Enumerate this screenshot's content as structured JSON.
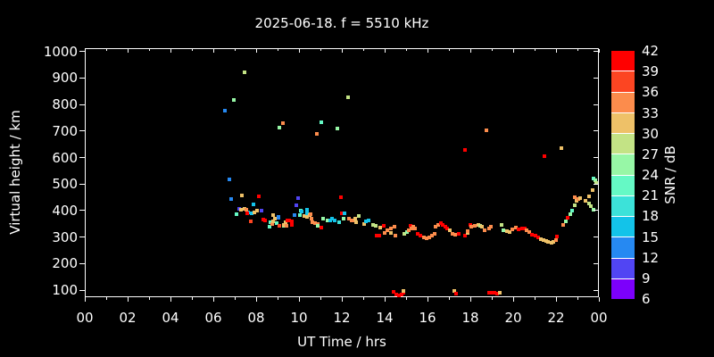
{
  "title": "2025-06-18. f = 5510 kHz",
  "axes": {
    "x": {
      "label": "UT Time / hrs",
      "tick_labels": [
        "00",
        "02",
        "04",
        "06",
        "08",
        "10",
        "12",
        "14",
        "16",
        "18",
        "20",
        "22",
        "00"
      ],
      "tick_hours": [
        0,
        2,
        4,
        6,
        8,
        10,
        12,
        14,
        16,
        18,
        20,
        22,
        24
      ],
      "minor_hours": [
        1,
        3,
        5,
        7,
        9,
        11,
        13,
        15,
        17,
        19,
        21,
        23
      ],
      "range_hours": [
        0,
        24
      ]
    },
    "y": {
      "label": "Virtual height / km",
      "tick_values": [
        100,
        200,
        300,
        400,
        500,
        600,
        700,
        800,
        900,
        1000
      ],
      "range_km": [
        73,
        1012
      ]
    }
  },
  "colorbar": {
    "label": "SNR / dB",
    "tick_labels": [
      "42",
      "39",
      "36",
      "33",
      "30",
      "27",
      "24",
      "21",
      "18",
      "15",
      "12",
      "9",
      "6"
    ],
    "segment_colors_low_to_high": [
      "#7c00fb",
      "#5145f3",
      "#2689f2",
      "#13c3e9",
      "#3ce2d9",
      "#65f9c5",
      "#97f7a6",
      "#c3e385",
      "#eec168",
      "#fc8c4c",
      "#fc4522",
      "#ff0000"
    ]
  },
  "chart_data": {
    "type": "scatter",
    "title": "2025-06-18. f = 5510 kHz",
    "xlabel": "UT Time / hrs",
    "ylabel": "Virtual height / km",
    "colorbar_label": "SNR / dB",
    "xlim": [
      0,
      24
    ],
    "ylim": [
      73,
      1012
    ],
    "snr_levels": [
      6,
      9,
      12,
      15,
      18,
      21,
      24,
      27,
      30,
      33,
      36,
      39,
      42
    ],
    "snr_colors": [
      "#7c00fb",
      "#5145f3",
      "#2689f2",
      "#13c3e9",
      "#3ce2d9",
      "#65f9c5",
      "#97f7a6",
      "#c3e385",
      "#eec168",
      "#fc8c4c",
      "#fc4522",
      "#ff0000"
    ],
    "points_format": "[ut_hour, virtual_height_km, snr_db]",
    "points": [
      [
        6.5,
        779,
        13
      ],
      [
        6.9,
        822,
        25
      ],
      [
        7.4,
        925,
        28
      ],
      [
        9.2,
        733,
        34
      ],
      [
        9.05,
        715,
        25
      ],
      [
        10.8,
        692,
        34
      ],
      [
        11.0,
        736,
        22
      ],
      [
        11.75,
        714,
        25
      ],
      [
        12.25,
        832,
        28
      ],
      [
        17.7,
        633,
        40
      ],
      [
        18.7,
        707,
        35
      ],
      [
        21.4,
        607,
        40
      ],
      [
        22.2,
        640,
        31
      ],
      [
        6.7,
        520,
        13
      ],
      [
        6.8,
        448,
        13
      ],
      [
        7.3,
        459,
        31
      ],
      [
        7.17,
        411,
        10
      ],
      [
        7.04,
        391,
        22
      ],
      [
        7.25,
        405,
        31
      ],
      [
        7.42,
        411,
        31
      ],
      [
        7.58,
        396,
        16
      ],
      [
        7.75,
        394,
        16
      ],
      [
        7.88,
        397,
        31
      ],
      [
        8.0,
        403,
        31
      ],
      [
        8.08,
        456,
        40
      ],
      [
        7.85,
        427,
        16
      ],
      [
        7.7,
        362,
        37
      ],
      [
        8.19,
        403,
        10
      ],
      [
        8.29,
        369,
        40
      ],
      [
        7.53,
        394,
        40
      ],
      [
        7.49,
        407,
        34
      ],
      [
        8.38,
        367,
        40
      ],
      [
        8.57,
        341,
        22
      ],
      [
        8.63,
        360,
        22
      ],
      [
        8.72,
        353,
        34
      ],
      [
        8.76,
        363,
        31
      ],
      [
        8.74,
        385,
        31
      ],
      [
        8.85,
        374,
        31
      ],
      [
        8.93,
        356,
        22
      ],
      [
        8.99,
        375,
        13
      ],
      [
        9.01,
        378,
        13
      ],
      [
        9.03,
        347,
        37
      ],
      [
        9.24,
        347,
        25
      ],
      [
        9.26,
        348,
        31
      ],
      [
        9.32,
        358,
        31
      ],
      [
        9.38,
        346,
        34
      ],
      [
        9.4,
        367,
        40
      ],
      [
        9.51,
        367,
        40
      ],
      [
        9.63,
        363,
        40
      ],
      [
        9.63,
        350,
        40
      ],
      [
        9.74,
        387,
        13
      ],
      [
        9.82,
        423,
        10
      ],
      [
        9.9,
        451,
        10
      ],
      [
        9.99,
        385,
        22
      ],
      [
        10.04,
        403,
        22
      ],
      [
        10.1,
        399,
        16
      ],
      [
        10.21,
        383,
        31
      ],
      [
        10.32,
        405,
        16
      ],
      [
        10.35,
        394,
        16
      ],
      [
        10.35,
        380,
        31
      ],
      [
        10.46,
        387,
        31
      ],
      [
        10.51,
        390,
        34
      ],
      [
        10.54,
        372,
        34
      ],
      [
        10.6,
        360,
        34
      ],
      [
        10.71,
        356,
        34
      ],
      [
        10.82,
        351,
        34
      ],
      [
        10.85,
        347,
        25
      ],
      [
        10.99,
        338,
        40
      ],
      [
        11.1,
        374,
        25
      ],
      [
        11.29,
        365,
        25
      ],
      [
        11.4,
        367,
        16
      ],
      [
        11.51,
        372,
        16
      ],
      [
        11.63,
        367,
        16
      ],
      [
        11.85,
        358,
        19
      ],
      [
        11.92,
        452,
        40
      ],
      [
        11.96,
        392,
        40
      ],
      [
        12.04,
        374,
        25
      ],
      [
        12.08,
        392,
        16
      ],
      [
        12.29,
        372,
        34
      ],
      [
        12.4,
        367,
        34
      ],
      [
        12.51,
        365,
        34
      ],
      [
        12.6,
        374,
        31
      ],
      [
        12.74,
        384,
        28
      ],
      [
        12.64,
        359,
        31
      ],
      [
        12.99,
        354,
        31
      ],
      [
        13.1,
        362,
        16
      ],
      [
        13.22,
        366,
        16
      ],
      [
        13.4,
        350,
        28
      ],
      [
        13.54,
        346,
        28
      ],
      [
        13.57,
        310,
        40
      ],
      [
        13.7,
        310,
        40
      ],
      [
        13.74,
        340,
        31
      ],
      [
        13.93,
        346,
        40
      ],
      [
        13.97,
        319,
        34
      ],
      [
        14.1,
        328,
        34
      ],
      [
        14.26,
        337,
        34
      ],
      [
        14.26,
        319,
        31
      ],
      [
        14.4,
        341,
        34
      ],
      [
        14.46,
        310,
        34
      ],
      [
        14.88,
        316,
        28
      ],
      [
        14.99,
        321,
        25
      ],
      [
        15.1,
        330,
        34
      ],
      [
        15.18,
        346,
        40
      ],
      [
        15.21,
        337,
        34
      ],
      [
        15.29,
        341,
        34
      ],
      [
        15.39,
        337,
        34
      ],
      [
        15.51,
        314,
        40
      ],
      [
        15.63,
        308,
        40
      ],
      [
        15.79,
        303,
        34
      ],
      [
        15.93,
        299,
        34
      ],
      [
        16.04,
        303,
        34
      ],
      [
        16.18,
        310,
        34
      ],
      [
        16.29,
        316,
        34
      ],
      [
        16.35,
        341,
        34
      ],
      [
        16.46,
        348,
        34
      ],
      [
        16.57,
        355,
        40
      ],
      [
        16.68,
        350,
        40
      ],
      [
        16.79,
        343,
        40
      ],
      [
        16.88,
        337,
        40
      ],
      [
        16.99,
        328,
        31
      ],
      [
        17.13,
        316,
        34
      ],
      [
        17.26,
        312,
        34
      ],
      [
        17.4,
        314,
        40
      ],
      [
        17.71,
        310,
        40
      ],
      [
        17.85,
        319,
        31
      ],
      [
        17.85,
        325,
        34
      ],
      [
        17.96,
        350,
        40
      ],
      [
        18.01,
        341,
        34
      ],
      [
        18.18,
        346,
        34
      ],
      [
        18.32,
        350,
        31
      ],
      [
        18.4,
        345,
        28
      ],
      [
        18.49,
        341,
        31
      ],
      [
        18.63,
        330,
        34
      ],
      [
        18.82,
        337,
        34
      ],
      [
        18.93,
        343,
        34
      ],
      [
        19.43,
        350,
        28
      ],
      [
        19.51,
        330,
        25
      ],
      [
        19.65,
        325,
        31
      ],
      [
        19.79,
        321,
        31
      ],
      [
        19.93,
        332,
        34
      ],
      [
        20.07,
        339,
        34
      ],
      [
        20.21,
        332,
        40
      ],
      [
        20.38,
        337,
        40
      ],
      [
        20.49,
        335,
        40
      ],
      [
        20.6,
        328,
        34
      ],
      [
        20.71,
        321,
        34
      ],
      [
        20.85,
        312,
        40
      ],
      [
        20.99,
        308,
        40
      ],
      [
        21.13,
        301,
        40
      ],
      [
        21.24,
        296,
        31
      ],
      [
        21.38,
        292,
        31
      ],
      [
        21.49,
        287,
        31
      ],
      [
        21.6,
        285,
        31
      ],
      [
        21.74,
        283,
        31
      ],
      [
        21.85,
        285,
        31
      ],
      [
        21.96,
        292,
        34
      ],
      [
        22.01,
        305,
        40
      ],
      [
        22.29,
        350,
        34
      ],
      [
        22.4,
        362,
        25
      ],
      [
        22.51,
        375,
        40
      ],
      [
        22.63,
        391,
        25
      ],
      [
        22.71,
        404,
        22
      ],
      [
        22.85,
        422,
        28
      ],
      [
        22.85,
        454,
        34
      ],
      [
        22.93,
        440,
        31
      ],
      [
        23.01,
        447,
        34
      ],
      [
        23.07,
        449,
        31
      ],
      [
        23.32,
        440,
        31
      ],
      [
        23.49,
        429,
        28
      ],
      [
        23.51,
        456,
        31
      ],
      [
        23.6,
        420,
        28
      ],
      [
        23.65,
        482,
        31
      ],
      [
        23.71,
        406,
        25
      ],
      [
        23.71,
        525,
        22
      ],
      [
        23.79,
        516,
        25
      ],
      [
        23.85,
        507,
        28
      ],
      [
        14.38,
        95,
        40
      ],
      [
        14.5,
        87,
        40
      ],
      [
        14.63,
        83,
        40
      ],
      [
        14.75,
        87,
        40
      ],
      [
        14.85,
        93,
        40
      ],
      [
        14.82,
        99,
        31
      ],
      [
        17.22,
        101,
        31
      ],
      [
        17.28,
        91,
        40
      ],
      [
        18.83,
        94,
        40
      ],
      [
        18.96,
        93,
        40
      ],
      [
        19.08,
        92,
        40
      ],
      [
        19.21,
        91,
        40
      ],
      [
        19.32,
        92,
        31
      ]
    ]
  }
}
